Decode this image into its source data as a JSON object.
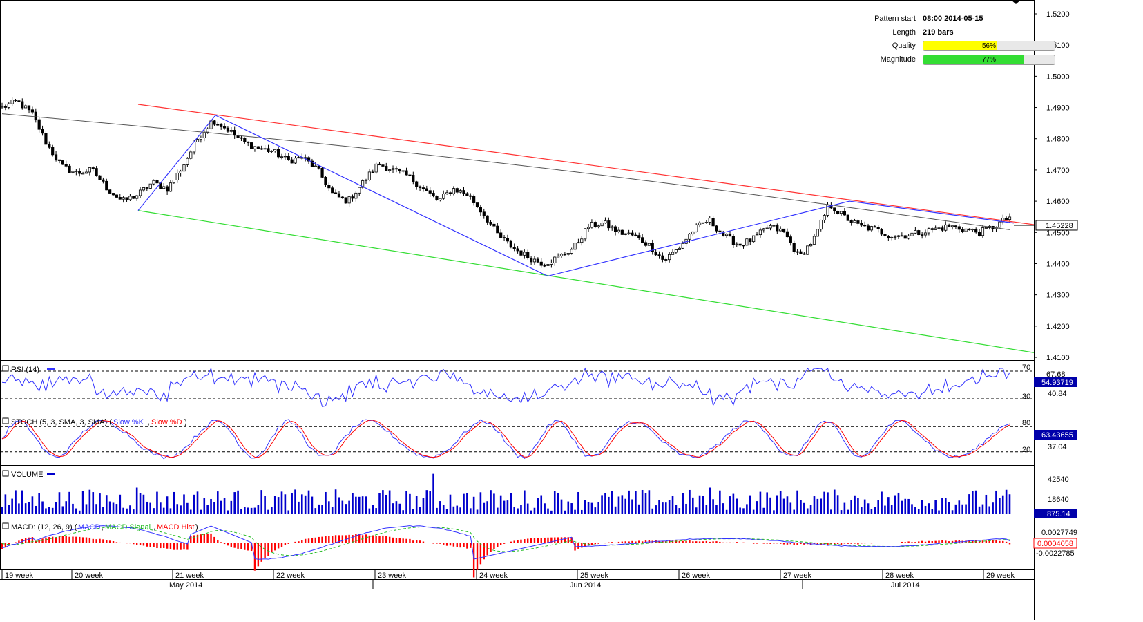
{
  "info_box": {
    "pattern_start_label": "Pattern start",
    "pattern_start_value": "08:00 2014-05-15",
    "length_label": "Length",
    "length_value": "219 bars",
    "quality_label": "Quality",
    "quality_text": "56%",
    "quality_value": 0.56,
    "quality_color": "#ffff00",
    "magnitude_label": "Magnitude",
    "magnitude_text": "77%",
    "magnitude_value": 0.77,
    "magnitude_color": "#33dd33"
  },
  "price_panel": {
    "y_ticks": [
      "1.5200",
      "1.5100",
      "1.5000",
      "1.4900",
      "1.4800",
      "1.4700",
      "1.4600",
      "1.4500",
      "1.4400",
      "1.4300",
      "1.4200",
      "1.4100"
    ],
    "last_price": "1.45228",
    "colors": {
      "channel_upper": "#ff3333",
      "channel_lower": "#33dd33",
      "zigzag": "#3333ff",
      "sma": "#555555",
      "candle": "#000000"
    }
  },
  "rsi_panel": {
    "label": "RSI (14)",
    "levels": [
      "70",
      "67.68",
      "40.84",
      "30"
    ],
    "current": "54.93719",
    "color": "#3333ff"
  },
  "stoch_panel": {
    "label": "STOCH (5, 3, SMA, 3, SMA)",
    "k_label": "Slow %K",
    "d_label": "Slow %D",
    "levels": [
      "80",
      "37.04",
      "20"
    ],
    "current": "63.43655",
    "k_color": "#3333ff",
    "d_color": "#ff0000"
  },
  "volume_panel": {
    "label": "VOLUME",
    "ticks": [
      "42540",
      "18640"
    ],
    "current": "875.14",
    "color": "#0000cc"
  },
  "macd_panel": {
    "label_prefix": "MACD: (12, 26, 9)",
    "macd_label": "MACD",
    "signal_label": "MACD Signal",
    "hist_label": "MACD Hist",
    "ticks": [
      "0.0027749",
      "-0.0022785"
    ],
    "current": "0.0004058",
    "macd_color": "#3333ff",
    "signal_color": "#22bb22",
    "hist_color": "#ff0000"
  },
  "x_axis": {
    "weeks": [
      "19 week",
      "20 week",
      "21 week",
      "22 week",
      "23 week",
      "24 week",
      "25 week",
      "26 week",
      "27 week",
      "28 week",
      "29 week"
    ],
    "months": [
      "May 2014",
      "Jun 2014",
      "Jul 2014"
    ]
  },
  "chart_data": {
    "type": "candlestick",
    "price_range": [
      1.41,
      1.52
    ],
    "grid": false,
    "pattern_channel": {
      "upper_line": [
        {
          "x": "21 week",
          "y": 1.491
        },
        {
          "x": "29 week",
          "y": 1.453
        }
      ],
      "lower_line": [
        {
          "x": "20 week",
          "y": 1.457
        },
        {
          "x": "29 week",
          "y": 1.411
        }
      ]
    },
    "zigzag": [
      1.457,
      1.4875,
      1.436,
      1.46,
      1.453
    ],
    "close_trend": [
      1.49,
      1.492,
      1.488,
      1.478,
      1.471,
      1.469,
      1.47,
      1.464,
      1.46,
      1.462,
      1.466,
      1.464,
      1.471,
      1.48,
      1.486,
      1.483,
      1.479,
      1.477,
      1.476,
      1.473,
      1.474,
      1.47,
      1.462,
      1.46,
      1.466,
      1.472,
      1.47,
      1.468,
      1.464,
      1.46,
      1.464,
      1.462,
      1.456,
      1.449,
      1.445,
      1.442,
      1.44,
      1.442,
      1.445,
      1.452,
      1.453,
      1.45,
      1.449,
      1.446,
      1.441,
      1.445,
      1.451,
      1.454,
      1.449,
      1.446,
      1.448,
      1.452,
      1.45,
      1.442,
      1.448,
      1.459,
      1.455,
      1.452,
      1.451,
      1.449,
      1.449,
      1.45,
      1.451,
      1.452,
      1.451,
      1.45,
      1.452,
      1.455
    ]
  }
}
